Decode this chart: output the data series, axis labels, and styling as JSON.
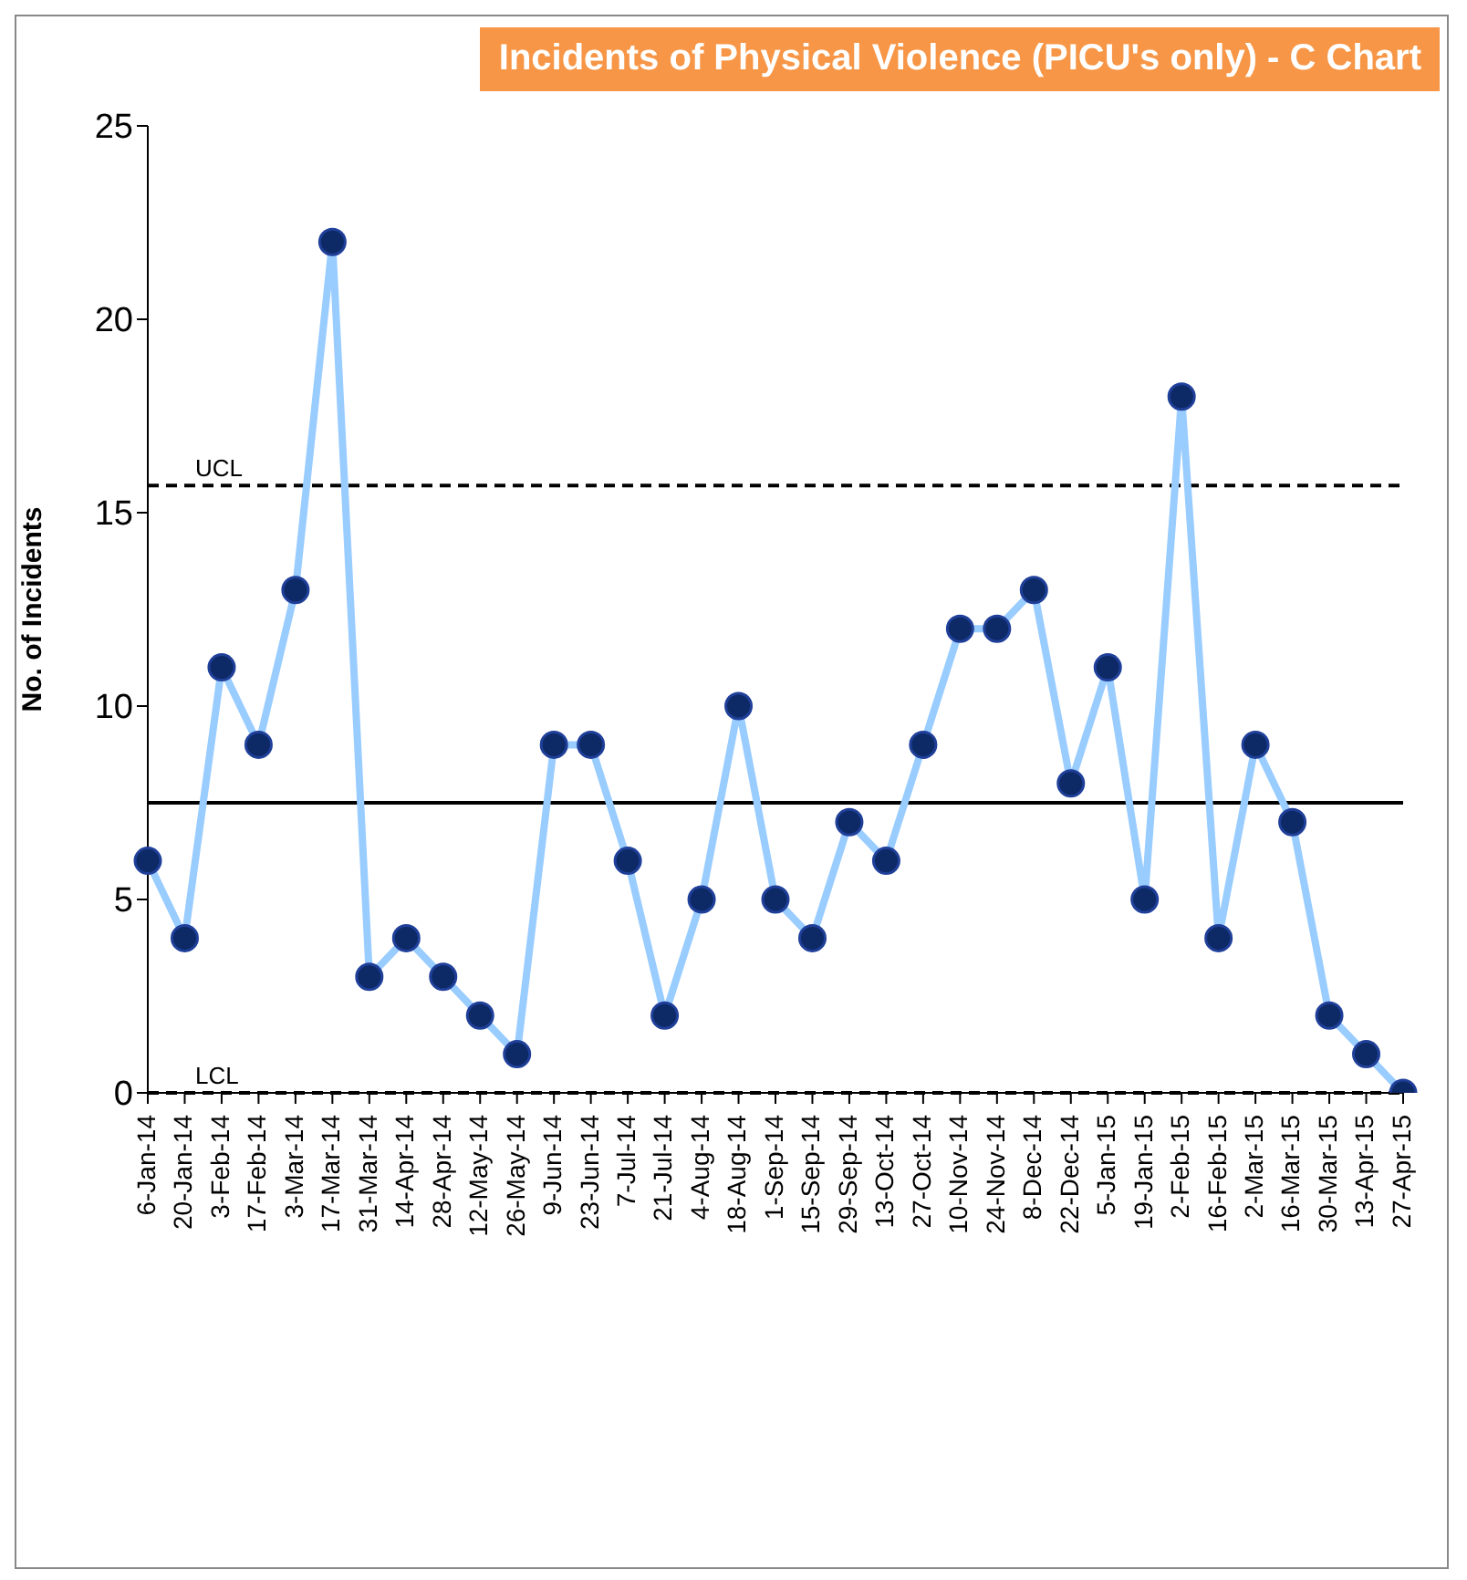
{
  "chart_data": {
    "type": "line",
    "title": "Incidents of Physical Violence (PICU's only) - C Chart",
    "ylabel": "No. of Incidents",
    "categories": [
      "6-Jan-14",
      "20-Jan-14",
      "3-Feb-14",
      "17-Feb-14",
      "3-Mar-14",
      "17-Mar-14",
      "31-Mar-14",
      "14-Apr-14",
      "28-Apr-14",
      "12-May-14",
      "26-May-14",
      "9-Jun-14",
      "23-Jun-14",
      "7-Jul-14",
      "21-Jul-14",
      "4-Aug-14",
      "18-Aug-14",
      "1-Sep-14",
      "15-Sep-14",
      "29-Sep-14",
      "13-Oct-14",
      "27-Oct-14",
      "10-Nov-14",
      "24-Nov-14",
      "8-Dec-14",
      "22-Dec-14",
      "5-Jan-15",
      "19-Jan-15",
      "2-Feb-15",
      "16-Feb-15",
      "2-Mar-15",
      "16-Mar-15",
      "30-Mar-15",
      "13-Apr-15",
      "27-Apr-15"
    ],
    "series": [
      {
        "color": "#99ccff",
        "values": [
          6,
          4,
          11,
          9,
          13,
          22,
          3,
          4,
          3,
          2,
          1,
          9,
          9,
          6,
          2,
          5,
          10,
          5,
          4,
          7,
          6,
          9,
          12,
          12,
          13,
          8,
          11,
          5,
          18,
          4,
          9,
          7,
          2,
          1,
          0
        ]
      }
    ],
    "ylim": [
      0,
      25
    ],
    "yticks": [
      0,
      5,
      10,
      15,
      20,
      25
    ],
    "marker": "circle",
    "line_style": "solid",
    "ref_lines": [
      {
        "axis": "y",
        "value": 7.5,
        "label": null,
        "color": "#000000",
        "line_style": "solid"
      },
      {
        "axis": "y",
        "value": 15.7,
        "label": "UCL",
        "color": "#000000",
        "line_style": "dashed"
      },
      {
        "axis": "y",
        "value": 0,
        "label": "LCL",
        "color": "#000000",
        "line_style": "dashed"
      }
    ]
  }
}
